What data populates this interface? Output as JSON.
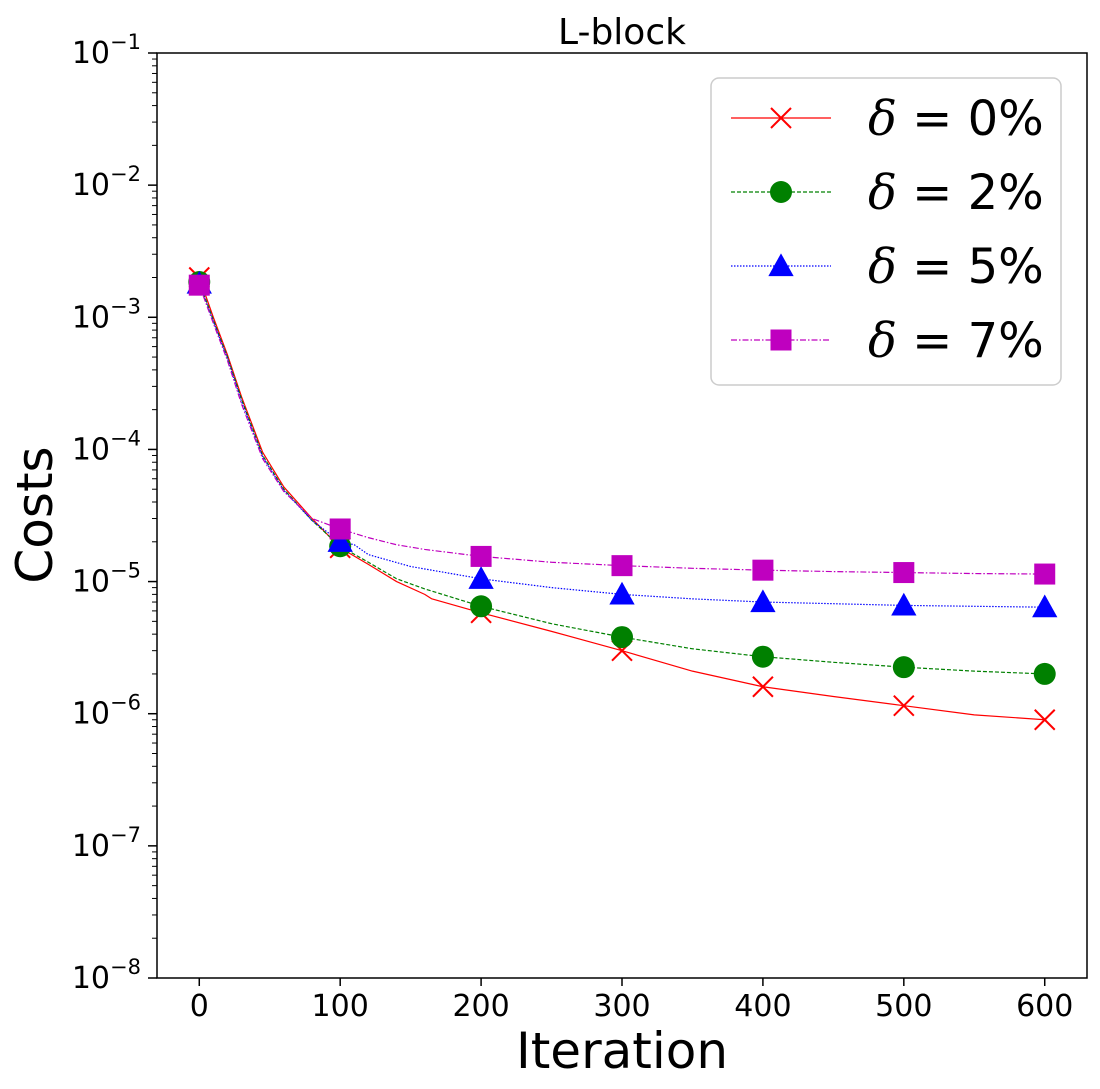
{
  "chart_data": {
    "type": "line",
    "title": "L-block",
    "xlabel": "Iteration",
    "ylabel": "Costs",
    "xscale": "linear",
    "yscale": "log",
    "xlim": [
      -30,
      630
    ],
    "ylim": [
      1e-08,
      0.1
    ],
    "xticks": [
      0,
      100,
      200,
      300,
      400,
      500,
      600
    ],
    "xtick_labels": [
      "0",
      "100",
      "200",
      "300",
      "400",
      "500",
      "600"
    ],
    "yticks": [
      {
        "exp": -1,
        "label_base": "10",
        "label_exp": "−1"
      },
      {
        "exp": -2,
        "label_base": "10",
        "label_exp": "−2"
      },
      {
        "exp": -3,
        "label_base": "10",
        "label_exp": "−3"
      },
      {
        "exp": -4,
        "label_base": "10",
        "label_exp": "−4"
      },
      {
        "exp": -5,
        "label_base": "10",
        "label_exp": "−5"
      },
      {
        "exp": -6,
        "label_base": "10",
        "label_exp": "−6"
      },
      {
        "exp": -7,
        "label_base": "10",
        "label_exp": "−7"
      },
      {
        "exp": -8,
        "label_base": "10",
        "label_exp": "−8"
      }
    ],
    "grid": false,
    "legend_position": "top-right",
    "series": [
      {
        "name": "δ = 0%",
        "label_symbol": "δ",
        "label_rest": " = 0%",
        "color": "#ff0000",
        "marker": "x",
        "dash": "none",
        "x": [
          0,
          10,
          20,
          30,
          45,
          60,
          80,
          100,
          120,
          140,
          160,
          165,
          200,
          250,
          300,
          350,
          400,
          450,
          500,
          550,
          600
        ],
        "y": [
          0.002,
          0.001,
          0.00052,
          0.00025,
          9.5e-05,
          5.2e-05,
          3e-05,
          1.8e-05,
          1.35e-05,
          1e-05,
          8e-06,
          7.4e-06,
          5.8e-06,
          4.2e-06,
          3e-06,
          2.1e-06,
          1.6e-06,
          1.35e-06,
          1.15e-06,
          9.8e-07,
          9e-07
        ],
        "marker_x": [
          0,
          100,
          200,
          300,
          400,
          500,
          600
        ],
        "marker_y": [
          0.002,
          1.8e-05,
          5.8e-06,
          3e-06,
          1.6e-06,
          1.15e-06,
          9e-07
        ]
      },
      {
        "name": "δ = 2%",
        "label_symbol": "δ",
        "label_rest": " = 2%",
        "color": "#008000",
        "marker": "o",
        "dash": "4,2",
        "x": [
          0,
          10,
          20,
          30,
          45,
          60,
          80,
          100,
          120,
          140,
          160,
          200,
          250,
          300,
          350,
          400,
          450,
          500,
          550,
          600
        ],
        "y": [
          0.00185,
          0.00095,
          0.0005,
          0.00024,
          9e-05,
          5e-05,
          2.9e-05,
          1.85e-05,
          1.4e-05,
          1.05e-05,
          8.8e-06,
          6.5e-06,
          4.8e-06,
          3.8e-06,
          3.1e-06,
          2.7e-06,
          2.45e-06,
          2.25e-06,
          2.1e-06,
          2e-06
        ],
        "marker_x": [
          0,
          100,
          200,
          300,
          400,
          500,
          600
        ],
        "marker_y": [
          0.00185,
          1.85e-05,
          6.5e-06,
          3.8e-06,
          2.7e-06,
          2.25e-06,
          2e-06
        ]
      },
      {
        "name": "δ = 5%",
        "label_symbol": "δ",
        "label_rest": " = 5%",
        "color": "#0000ff",
        "marker": "^",
        "dash": "1.5,1.5",
        "x": [
          0,
          10,
          20,
          30,
          45,
          60,
          80,
          100,
          110,
          120,
          150,
          200,
          250,
          300,
          350,
          400,
          450,
          500,
          550,
          600
        ],
        "y": [
          0.0018,
          0.00093,
          0.00049,
          0.00023,
          8.8e-05,
          4.9e-05,
          2.9e-05,
          2e-05,
          1.9e-05,
          1.6e-05,
          1.3e-05,
          1.05e-05,
          9e-06,
          8e-06,
          7.4e-06,
          7e-06,
          6.8e-06,
          6.6e-06,
          6.5e-06,
          6.4e-06
        ],
        "marker_x": [
          0,
          100,
          200,
          300,
          400,
          500,
          600
        ],
        "marker_y": [
          0.0018,
          2e-05,
          1.05e-05,
          8e-06,
          7e-06,
          6.6e-06,
          6.4e-06
        ]
      },
      {
        "name": "δ = 7%",
        "label_symbol": "δ",
        "label_rest": " = 7%",
        "color": "#bf00bf",
        "marker": "s",
        "dash": "6,2,1.5,2",
        "x": [
          0,
          10,
          20,
          30,
          45,
          60,
          80,
          100,
          120,
          140,
          160,
          200,
          250,
          300,
          350,
          400,
          450,
          500,
          550,
          600
        ],
        "y": [
          0.00175,
          0.0009,
          0.00047,
          0.00022,
          8.5e-05,
          4.8e-05,
          3e-05,
          2.5e-05,
          2.15e-05,
          1.9e-05,
          1.75e-05,
          1.55e-05,
          1.4e-05,
          1.32e-05,
          1.26e-05,
          1.22e-05,
          1.19e-05,
          1.17e-05,
          1.15e-05,
          1.14e-05
        ],
        "marker_x": [
          0,
          100,
          200,
          300,
          400,
          500,
          600
        ],
        "marker_y": [
          0.00175,
          2.5e-05,
          1.55e-05,
          1.32e-05,
          1.22e-05,
          1.17e-05,
          1.14e-05
        ]
      }
    ]
  }
}
